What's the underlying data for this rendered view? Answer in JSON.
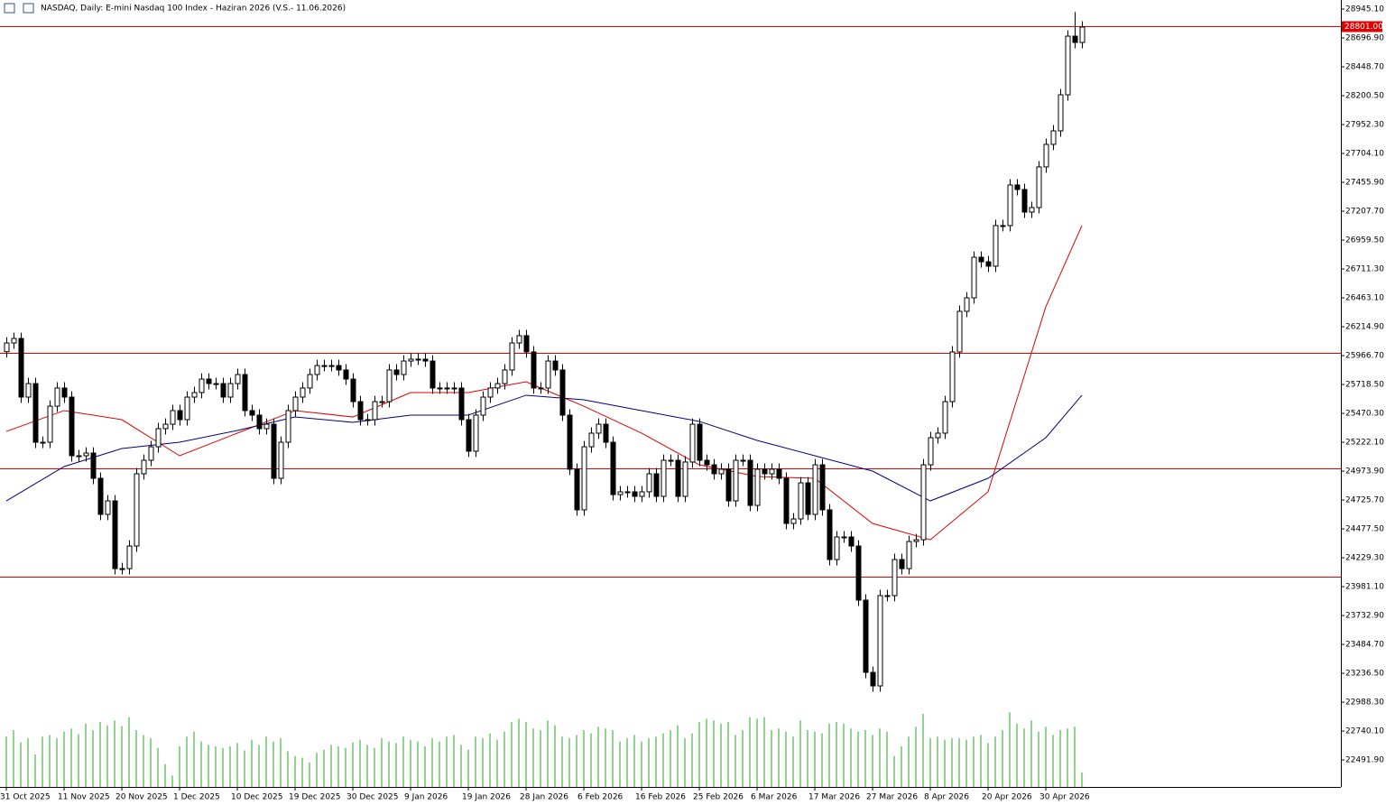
{
  "chart_data": {
    "type": "candlestick",
    "title": "NASDAQ, Daily:  E-mini Nasdaq 100 Index -  Haziran 2026 (V.S.- 11.06.2026)",
    "ylim": [
      22259.5,
      29022.7
    ],
    "yticks": [
      {
        "value": 28945.1,
        "label": "28945.10"
      },
      {
        "value": 28696.9,
        "label": "28696.90"
      },
      {
        "value": 28448.7,
        "label": "28448.70"
      },
      {
        "value": 28200.5,
        "label": "28200.50"
      },
      {
        "value": 27952.3,
        "label": "27952.30"
      },
      {
        "value": 27704.1,
        "label": "27704.10"
      },
      {
        "value": 27455.9,
        "label": "27455.90"
      },
      {
        "value": 27207.7,
        "label": "27207.70"
      },
      {
        "value": 26959.5,
        "label": "26959.50"
      },
      {
        "value": 26711.3,
        "label": "26711.30"
      },
      {
        "value": 26463.1,
        "label": "26463.10"
      },
      {
        "value": 26214.9,
        "label": "26214.90"
      },
      {
        "value": 25966.7,
        "label": "25966.70"
      },
      {
        "value": 25718.5,
        "label": "25718.50"
      },
      {
        "value": 25470.3,
        "label": "25470.30"
      },
      {
        "value": 25222.1,
        "label": "25222.10"
      },
      {
        "value": 24973.9,
        "label": "24973.90"
      },
      {
        "value": 24725.7,
        "label": "24725.70"
      },
      {
        "value": 24477.5,
        "label": "24477.50"
      },
      {
        "value": 24229.3,
        "label": "24229.30"
      },
      {
        "value": 23981.1,
        "label": "23981.10"
      },
      {
        "value": 23732.9,
        "label": "23732.90"
      },
      {
        "value": 23484.7,
        "label": "23484.70"
      },
      {
        "value": 23236.5,
        "label": "23236.50"
      },
      {
        "value": 22988.3,
        "label": "22988.30"
      },
      {
        "value": 22740.1,
        "label": "22740.10"
      },
      {
        "value": 22491.9,
        "label": "22491.90"
      }
    ],
    "categories": [
      "31 Oct 2025",
      null,
      null,
      null,
      null,
      null,
      null,
      null,
      "11 Nov 2025",
      null,
      null,
      null,
      null,
      null,
      null,
      null,
      "20 Nov 2025",
      null,
      null,
      null,
      null,
      null,
      null,
      null,
      "1 Dec 2025",
      null,
      null,
      null,
      null,
      null,
      null,
      null,
      "10 Dec 2025",
      null,
      null,
      null,
      null,
      null,
      null,
      null,
      "19 Dec 2025",
      null,
      null,
      null,
      null,
      null,
      null,
      null,
      "30 Dec 2025",
      null,
      null,
      null,
      null,
      null,
      null,
      null,
      "9 Jan 2026",
      null,
      null,
      null,
      null,
      null,
      null,
      null,
      "19 Jan 2026",
      null,
      null,
      null,
      null,
      null,
      null,
      null,
      "28 Jan 2026",
      null,
      null,
      null,
      null,
      null,
      null,
      null,
      "6 Feb 2026",
      null,
      null,
      null,
      null,
      null,
      null,
      null,
      "16 Feb 2026",
      null,
      null,
      null,
      null,
      null,
      null,
      null,
      "25 Feb 2026",
      null,
      null,
      null,
      null,
      null,
      null,
      null,
      "6 Mar 2026",
      null,
      null,
      null,
      null,
      null,
      null,
      null,
      "17 Mar 2026",
      null,
      null,
      null,
      null,
      null,
      null,
      null,
      "27 Mar 2026",
      null,
      null,
      null,
      null,
      null,
      null,
      null,
      "8 Apr 2026",
      null,
      null,
      null,
      null,
      null,
      null,
      null,
      "20 Apr 2026",
      null,
      null,
      null,
      null,
      null,
      null,
      null,
      "30 Apr 2026",
      null,
      null,
      null,
      null,
      null
    ],
    "open": [
      26000,
      26075,
      26114,
      25610,
      25726,
      25222,
      25222,
      25532,
      25688,
      25610,
      25106,
      25106,
      25129,
      24912,
      24602,
      24718,
      24136,
      24136,
      24330,
      24951,
      25067,
      25183,
      25339,
      25377,
      25494,
      25416,
      25610,
      25649,
      25765,
      25726,
      25726,
      25610,
      25726,
      25804,
      25494,
      25455,
      25339,
      25377,
      24912,
      25222,
      25494,
      25610,
      25688,
      25804,
      25881,
      25881,
      25881,
      25843,
      25765,
      25571,
      25416,
      25416,
      25571,
      25571,
      25843,
      25804,
      25920,
      25936,
      25936,
      25920,
      25688,
      25688,
      25688,
      25688,
      25416,
      25145,
      25455,
      25610,
      25688,
      25726,
      25843,
      26075,
      26138,
      25998,
      25688,
      25688,
      25920,
      25843,
      25455,
      24990,
      24641,
      25183,
      25300,
      25377,
      25222,
      24772,
      24796,
      24796,
      24757,
      24796,
      24951,
      24757,
      25067,
      25067,
      24757,
      25052,
      25377,
      25067,
      25028,
      24951,
      24990,
      24718,
      25067,
      25067,
      24679,
      24990,
      24951,
      24990,
      24912,
      24524,
      24563,
      24873,
      24602,
      25028,
      24641,
      24214,
      24408,
      24408,
      24330,
      23865,
      23244,
      23128,
      23904,
      23904,
      24214,
      24136,
      24369,
      24384,
      25028,
      25261,
      25300,
      25571,
      25998,
      26347,
      26463,
      26812,
      26773,
      26735,
      27084,
      27084,
      27433,
      27394,
      27200,
      27239,
      27588,
      27782,
      27898,
      28208,
      28712,
      28658
    ],
    "high": [
      26125,
      26164,
      26164,
      25776,
      25776,
      25272,
      25582,
      25738,
      25738,
      25660,
      25156,
      25179,
      25179,
      24962,
      24768,
      24768,
      24186,
      24380,
      25001,
      25117,
      25233,
      25389,
      25427,
      25544,
      25544,
      25660,
      25699,
      25815,
      25815,
      25776,
      25776,
      25776,
      25854,
      25854,
      25544,
      25505,
      25427,
      25427,
      25272,
      25544,
      25660,
      25738,
      25854,
      25931,
      25931,
      25931,
      25931,
      25893,
      25815,
      25621,
      25466,
      25621,
      25621,
      25893,
      25893,
      25970,
      25986,
      25986,
      25986,
      25970,
      25738,
      25738,
      25738,
      25738,
      25466,
      25505,
      25660,
      25738,
      25776,
      25893,
      26125,
      26188,
      26188,
      26048,
      25738,
      25970,
      25970,
      25893,
      25505,
      25040,
      25233,
      25350,
      25427,
      25427,
      25272,
      24846,
      24846,
      24846,
      24846,
      25001,
      25001,
      25117,
      25117,
      25117,
      25102,
      25427,
      25427,
      25117,
      25078,
      25040,
      25040,
      25117,
      25117,
      25117,
      25040,
      25040,
      25040,
      25040,
      24962,
      24613,
      24923,
      24923,
      25078,
      25078,
      24691,
      24458,
      24458,
      24458,
      24380,
      23915,
      23294,
      23954,
      23954,
      24264,
      24264,
      24419,
      24434,
      25078,
      25311,
      25350,
      25621,
      26048,
      26397,
      26513,
      26862,
      26862,
      26823,
      27134,
      27134,
      27483,
      27483,
      27444,
      27289,
      27638,
      27832,
      27948,
      28258,
      28762,
      28920,
      28840
    ],
    "low": [
      25950,
      26025,
      25560,
      25560,
      25172,
      25172,
      25172,
      25482,
      25560,
      25056,
      25056,
      25056,
      24862,
      24552,
      24552,
      24086,
      24086,
      24086,
      24280,
      24901,
      25017,
      25133,
      25289,
      25327,
      25366,
      25366,
      25560,
      25599,
      25676,
      25676,
      25560,
      25560,
      25676,
      25444,
      25405,
      25289,
      25289,
      24862,
      24862,
      25172,
      25444,
      25560,
      25638,
      25754,
      25831,
      25831,
      25793,
      25715,
      25521,
      25366,
      25366,
      25366,
      25521,
      25521,
      25754,
      25754,
      25870,
      25886,
      25870,
      25638,
      25638,
      25638,
      25638,
      25366,
      25095,
      25095,
      25405,
      25560,
      25638,
      25676,
      25793,
      26025,
      25948,
      25638,
      25638,
      25638,
      25793,
      25405,
      24940,
      24591,
      24591,
      25133,
      25250,
      25172,
      24722,
      24722,
      24746,
      24707,
      24707,
      24746,
      24707,
      24707,
      25017,
      24707,
      24707,
      25002,
      25017,
      24978,
      24901,
      24901,
      24668,
      24668,
      25017,
      24629,
      24629,
      24901,
      24901,
      24862,
      24474,
      24474,
      24513,
      24552,
      24552,
      24591,
      24164,
      24164,
      24358,
      24280,
      23815,
      23194,
      23078,
      23078,
      23854,
      23854,
      24086,
      24086,
      24319,
      24334,
      24978,
      25211,
      25250,
      25521,
      25948,
      26297,
      26413,
      26723,
      26685,
      26685,
      27034,
      27034,
      27344,
      27150,
      27150,
      27189,
      27538,
      27732,
      27848,
      28158,
      28608,
      28608
    ],
    "close": [
      26075,
      26114,
      25610,
      25726,
      25222,
      25222,
      25532,
      25688,
      25610,
      25106,
      25106,
      25129,
      24912,
      24602,
      24718,
      24136,
      24136,
      24330,
      24951,
      25067,
      25183,
      25339,
      25377,
      25494,
      25416,
      25610,
      25649,
      25765,
      25726,
      25726,
      25610,
      25726,
      25804,
      25494,
      25455,
      25339,
      25377,
      24912,
      25222,
      25494,
      25610,
      25688,
      25804,
      25881,
      25881,
      25881,
      25843,
      25765,
      25571,
      25416,
      25416,
      25571,
      25571,
      25843,
      25804,
      25920,
      25936,
      25936,
      25920,
      25688,
      25688,
      25688,
      25688,
      25416,
      25145,
      25455,
      25610,
      25688,
      25726,
      25843,
      26075,
      26138,
      25998,
      25688,
      25688,
      25920,
      25843,
      25455,
      24990,
      24641,
      25183,
      25300,
      25377,
      25222,
      24772,
      24796,
      24796,
      24757,
      24796,
      24951,
      24757,
      25067,
      25067,
      24757,
      25052,
      25377,
      25067,
      25028,
      24951,
      24990,
      24718,
      25067,
      25067,
      24679,
      24990,
      24951,
      24990,
      24912,
      24524,
      24563,
      24873,
      24602,
      25028,
      24641,
      24214,
      24408,
      24408,
      24330,
      23865,
      23244,
      23128,
      23904,
      23904,
      24214,
      24136,
      24369,
      24384,
      25028,
      25261,
      25300,
      25571,
      25998,
      26347,
      26463,
      26812,
      26773,
      26735,
      27084,
      27084,
      27433,
      27394,
      27200,
      27239,
      27588,
      27782,
      27898,
      28208,
      28712,
      28658,
      28790
    ],
    "volume": [
      62,
      70,
      55,
      60,
      40,
      62,
      64,
      60,
      68,
      72,
      65,
      78,
      70,
      80,
      76,
      82,
      75,
      86,
      70,
      64,
      60,
      48,
      28,
      14,
      50,
      62,
      68,
      56,
      52,
      50,
      48,
      50,
      54,
      45,
      58,
      52,
      62,
      56,
      60,
      44,
      38,
      36,
      30,
      42,
      46,
      52,
      50,
      48,
      55,
      58,
      52,
      48,
      60,
      56,
      54,
      62,
      58,
      56,
      50,
      60,
      56,
      62,
      64,
      52,
      46,
      62,
      60,
      66,
      58,
      68,
      80,
      84,
      80,
      72,
      70,
      82,
      76,
      62,
      60,
      64,
      70,
      66,
      74,
      72,
      70,
      56,
      60,
      64,
      56,
      60,
      62,
      66,
      70,
      76,
      60,
      66,
      80,
      84,
      82,
      78,
      80,
      64,
      70,
      86,
      84,
      86,
      70,
      72,
      68,
      62,
      82,
      70,
      68,
      66,
      78,
      80,
      78,
      72,
      68,
      70,
      64,
      72,
      68,
      38,
      50,
      62,
      74,
      90,
      60,
      62,
      58,
      60,
      60,
      58,
      62,
      64,
      54,
      62,
      70,
      92,
      78,
      72,
      82,
      68,
      74,
      64,
      70,
      72,
      74,
      18
    ],
    "volume_color": "#22aa22",
    "moving_averages": [
      {
        "color": "#e00000",
        "x": [
          0,
          8,
          16,
          24,
          32,
          40,
          48,
          56,
          64,
          72,
          80,
          88,
          96,
          104,
          112,
          120,
          128,
          136,
          144,
          149
        ],
        "values": [
          25315,
          25494,
          25416,
          25106,
          25300,
          25494,
          25439,
          25649,
          25649,
          25742,
          25532,
          25300,
          25028,
          24928,
          24912,
          24524,
          24384,
          24796,
          26386,
          27084
        ]
      },
      {
        "color": "#000080",
        "x": [
          0,
          8,
          16,
          24,
          32,
          40,
          48,
          56,
          64,
          72,
          80,
          88,
          96,
          104,
          112,
          120,
          128,
          136,
          144,
          149
        ],
        "values": [
          24718,
          25013,
          25168,
          25222,
          25323,
          25439,
          25393,
          25455,
          25455,
          25626,
          25587,
          25494,
          25401,
          25238,
          25106,
          24974,
          24718,
          24912,
          25261,
          25626
        ]
      }
    ],
    "levels": [
      {
        "value": 28801,
        "label": "28801.00"
      },
      25990,
      24997,
      24067
    ],
    "level_color": "#e00000"
  }
}
